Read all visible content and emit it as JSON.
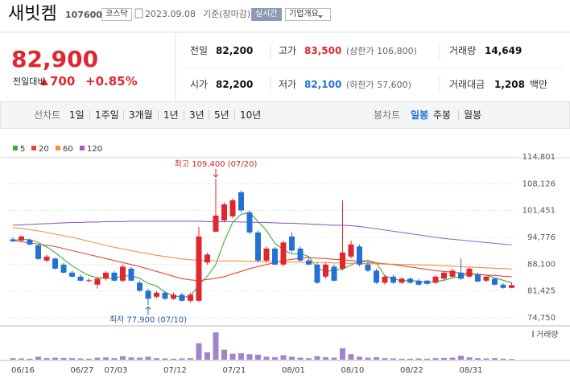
{
  "header": {
    "name": "새빗켐",
    "code": "107600",
    "market": "코스닥",
    "date": "2023.09.08",
    "basis": "기준(장마감)",
    "realtime": "실시간",
    "overview": "기업개요"
  },
  "quote": {
    "price": "82,900",
    "change_label": "전일대비",
    "change": "700",
    "change_rate": "+0.85%",
    "rows": [
      [
        {
          "label": "전일",
          "value": "82,200"
        },
        {
          "label": "고가",
          "value": "83,500",
          "note": "(상한가 106,800)"
        },
        {
          "label": "거래량",
          "value": "14,649"
        }
      ],
      [
        {
          "label": "시가",
          "value": "82,200"
        },
        {
          "label": "저가",
          "value": "82,100",
          "note": "(하한가 57,600)"
        },
        {
          "label": "거래대금",
          "value": "1,208",
          "unit": "백만"
        }
      ]
    ]
  },
  "tabs": {
    "line_label": "선차트",
    "line": [
      "1일",
      "1주일",
      "3개월",
      "1년",
      "3년",
      "5년",
      "10년"
    ],
    "candle_label": "봉차트",
    "candle": [
      "일봉",
      "주봉",
      "월봉"
    ],
    "active": "일봉"
  },
  "chart_data": {
    "type": "candlestick",
    "legend": "top-left",
    "grid": true,
    "up_color": "#e0262e",
    "down_color": "#2471d6",
    "categories": [
      "06/16",
      null,
      null,
      null,
      null,
      null,
      null,
      "06/27",
      null,
      null,
      null,
      "07/03",
      null,
      null,
      null,
      null,
      null,
      null,
      "07/12",
      null,
      null,
      null,
      null,
      null,
      null,
      "07/21",
      null,
      null,
      null,
      null,
      null,
      null,
      "08/01",
      null,
      null,
      null,
      null,
      null,
      null,
      "08/10",
      null,
      null,
      null,
      null,
      null,
      null,
      "08/22",
      null,
      null,
      null,
      null,
      null,
      null,
      "08/31",
      null,
      null,
      null,
      null,
      null,
      null
    ],
    "open": [
      94300,
      94000,
      94200,
      92800,
      89000,
      89500,
      88000,
      86000,
      85000,
      84000,
      83000,
      84500,
      86000,
      84000,
      87000,
      83500,
      81500,
      80000,
      81000,
      79500,
      80500,
      79000,
      79000,
      88500,
      96200,
      99000,
      100000,
      106000,
      101000,
      96000,
      89000,
      92000,
      88000,
      95000,
      92000,
      89000,
      88000,
      85000,
      87500,
      87000,
      90000,
      92500,
      88000,
      86500,
      83500,
      85000,
      83500,
      84500,
      84000,
      84000,
      83500,
      84500,
      85000,
      86000,
      85000,
      85500,
      84000,
      84500,
      83000,
      82200
    ],
    "high": [
      94800,
      95200,
      94500,
      93200,
      90500,
      89800,
      88400,
      86500,
      85600,
      84600,
      85000,
      86400,
      86500,
      88000,
      87400,
      84000,
      82000,
      81400,
      81500,
      81000,
      81000,
      81000,
      97400,
      91000,
      109400,
      103500,
      104500,
      106500,
      101500,
      96500,
      92500,
      92400,
      94000,
      96000,
      92500,
      89600,
      88500,
      88500,
      88000,
      104000,
      94000,
      93000,
      88800,
      87000,
      85400,
      85500,
      84800,
      84800,
      84500,
      84200,
      85400,
      86200,
      87000,
      89500,
      87400,
      86000,
      85200,
      84800,
      83400,
      83500
    ],
    "low": [
      93600,
      93800,
      92800,
      89200,
      88600,
      86800,
      85800,
      84800,
      83800,
      83600,
      82000,
      84000,
      83800,
      83600,
      83800,
      81200,
      77900,
      79600,
      79200,
      79200,
      78800,
      78600,
      78800,
      88000,
      96000,
      98500,
      99500,
      101000,
      95500,
      88500,
      88500,
      87800,
      87500,
      91000,
      88800,
      87800,
      83200,
      84500,
      83800,
      86500,
      89500,
      87600,
      86200,
      83200,
      83000,
      83200,
      83200,
      83200,
      82800,
      83000,
      83200,
      84200,
      84800,
      84200,
      84800,
      83600,
      83600,
      82800,
      82000,
      82100
    ],
    "close": [
      93800,
      95000,
      93000,
      89400,
      90000,
      87000,
      86000,
      85000,
      84000,
      84100,
      84500,
      86000,
      84000,
      87500,
      84000,
      81500,
      79500,
      81000,
      79500,
      80500,
      79000,
      80500,
      95000,
      90500,
      100200,
      103000,
      104000,
      101500,
      96000,
      89000,
      92000,
      88000,
      93500,
      91500,
      89000,
      88000,
      83500,
      88000,
      84000,
      91000,
      93000,
      88000,
      86500,
      83500,
      85000,
      83500,
      84500,
      83500,
      83000,
      83200,
      85000,
      86000,
      86500,
      84500,
      87000,
      83800,
      85000,
      83000,
      82200,
      82900
    ],
    "series": [
      {
        "name": "5",
        "color": "#3cae3c",
        "values": [
          94000,
          94300,
          94200,
          93500,
          92400,
          91000,
          89300,
          87700,
          86400,
          85300,
          84700,
          84700,
          84500,
          85200,
          85200,
          84600,
          83300,
          82700,
          81100,
          80300,
          79900,
          80100,
          83000,
          85100,
          88000,
          93800,
          98500,
          100500,
          101000,
          98700,
          96500,
          93300,
          91700,
          90600,
          90800,
          90000,
          87000,
          86400,
          86500,
          86900,
          87900,
          88800,
          89100,
          88400,
          85200,
          84400,
          84000,
          84000,
          83900,
          83500,
          83800,
          84100,
          84700,
          85000,
          85800,
          85600,
          85400,
          84700,
          84100,
          83500
        ]
      },
      {
        "name": "20",
        "color": "#e8463c",
        "values": [
          94000,
          93700,
          93400,
          93100,
          92800,
          92500,
          92000,
          91500,
          91000,
          90500,
          90000,
          89500,
          89000,
          88500,
          88000,
          87500,
          86900,
          86300,
          85700,
          85100,
          84500,
          84200,
          84000,
          84300,
          84600,
          85000,
          85700,
          86300,
          87000,
          87500,
          88000,
          88500,
          89000,
          89300,
          89600,
          89800,
          89600,
          89500,
          89300,
          89200,
          89000,
          88800,
          88600,
          88400,
          88200,
          88000,
          87700,
          87400,
          87100,
          86800,
          86500,
          86300,
          86100,
          85900,
          85700,
          85500,
          85400,
          85300,
          85100,
          85000
        ]
      },
      {
        "name": "60",
        "color": "#f0923a",
        "values": [
          97200,
          97000,
          96700,
          96400,
          96000,
          95600,
          95200,
          94800,
          94300,
          93800,
          93300,
          92800,
          92300,
          91900,
          91500,
          91100,
          90700,
          90300,
          90000,
          89700,
          89400,
          89200,
          89100,
          89000,
          88900,
          88900,
          88900,
          88900,
          88800,
          88800,
          88700,
          88700,
          88600,
          88600,
          88600,
          88500,
          88500,
          88500,
          88400,
          88400,
          88300,
          88300,
          88200,
          88200,
          88100,
          88100,
          88000,
          88000,
          87900,
          87900,
          87800,
          87700,
          87600,
          87500,
          87400,
          87300,
          87200,
          87100,
          87000,
          86900
        ]
      },
      {
        "name": "120",
        "color": "#9a5fc4",
        "values": [
          97800,
          97900,
          98000,
          98100,
          98200,
          98300,
          98400,
          98500,
          98500,
          98600,
          98600,
          98700,
          98700,
          98700,
          98800,
          98800,
          98800,
          98800,
          98800,
          98800,
          98800,
          98800,
          98800,
          98700,
          98700,
          98700,
          98700,
          98600,
          98600,
          98500,
          98500,
          98400,
          98300,
          98300,
          98200,
          98100,
          98000,
          97900,
          97800,
          97800,
          97700,
          97500,
          97200,
          96900,
          96600,
          96300,
          96000,
          95700,
          95400,
          95100,
          94800,
          94500,
          94300,
          94100,
          93900,
          93700,
          93500,
          93300,
          93100,
          92900
        ]
      }
    ],
    "ylim": [
      74750,
      114801
    ],
    "yticks": [
      {
        "value": 114801,
        "label": "114,801"
      },
      {
        "value": 108126,
        "label": "108,126"
      },
      {
        "value": 101451,
        "label": "101,451"
      },
      {
        "value": 94776,
        "label": "94,776"
      },
      {
        "value": 88100,
        "label": "88,100"
      },
      {
        "value": 81425,
        "label": "81,425"
      },
      {
        "value": 74750,
        "label": "74,750"
      }
    ],
    "annotations": {
      "high": "최고 109,400 (07/20)",
      "low": "최저 77,900 (07/10)"
    },
    "volume": {
      "name": "거래량",
      "color": "#9f86cc",
      "ylim": [
        0,
        630000
      ],
      "values": [
        30000,
        25000,
        20000,
        60000,
        30000,
        40000,
        35000,
        30000,
        25000,
        20000,
        40000,
        45000,
        30000,
        70000,
        45000,
        40000,
        60000,
        30000,
        25000,
        20000,
        25000,
        30000,
        330000,
        150000,
        550000,
        200000,
        120000,
        130000,
        110000,
        100000,
        60000,
        50000,
        90000,
        60000,
        40000,
        30000,
        70000,
        50000,
        40000,
        230000,
        110000,
        60000,
        40000,
        50000,
        30000,
        25000,
        20000,
        20000,
        25000,
        20000,
        30000,
        35000,
        40000,
        80000,
        45000,
        30000,
        25000,
        30000,
        20000,
        14649
      ]
    }
  }
}
